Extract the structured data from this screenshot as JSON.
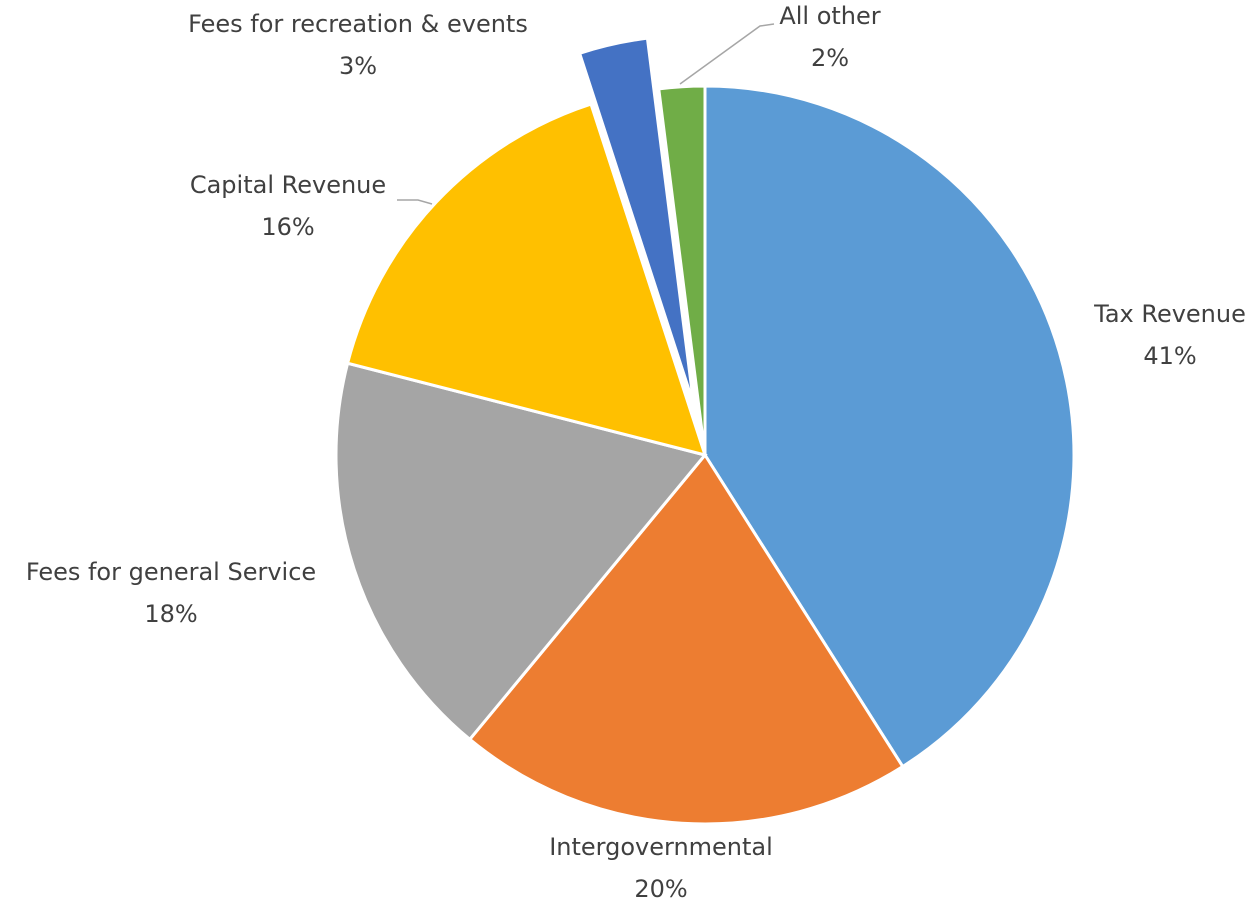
{
  "chart_data": {
    "type": "pie",
    "title": "",
    "start_angle": 0,
    "direction": "clockwise",
    "slices": [
      {
        "name": "Tax Revenue",
        "value": 41,
        "label": "41%",
        "color": "#5b9bd5",
        "exploded": false
      },
      {
        "name": "Intergovernmental",
        "value": 20,
        "label": "20%",
        "color": "#ed7d31",
        "exploded": false
      },
      {
        "name": "Fees for general Service",
        "value": 18,
        "label": "18%",
        "color": "#a5a5a5",
        "exploded": false
      },
      {
        "name": "Capital Revenue",
        "value": 16,
        "label": "16%",
        "color": "#ffc000",
        "exploded": false
      },
      {
        "name": "Fees for recreation & events",
        "value": 3,
        "label": "3%",
        "color": "#4472c4",
        "exploded": true
      },
      {
        "name": "All other",
        "value": 2,
        "label": "2%",
        "color": "#70ad47",
        "exploded": false
      }
    ],
    "legend": "none"
  }
}
